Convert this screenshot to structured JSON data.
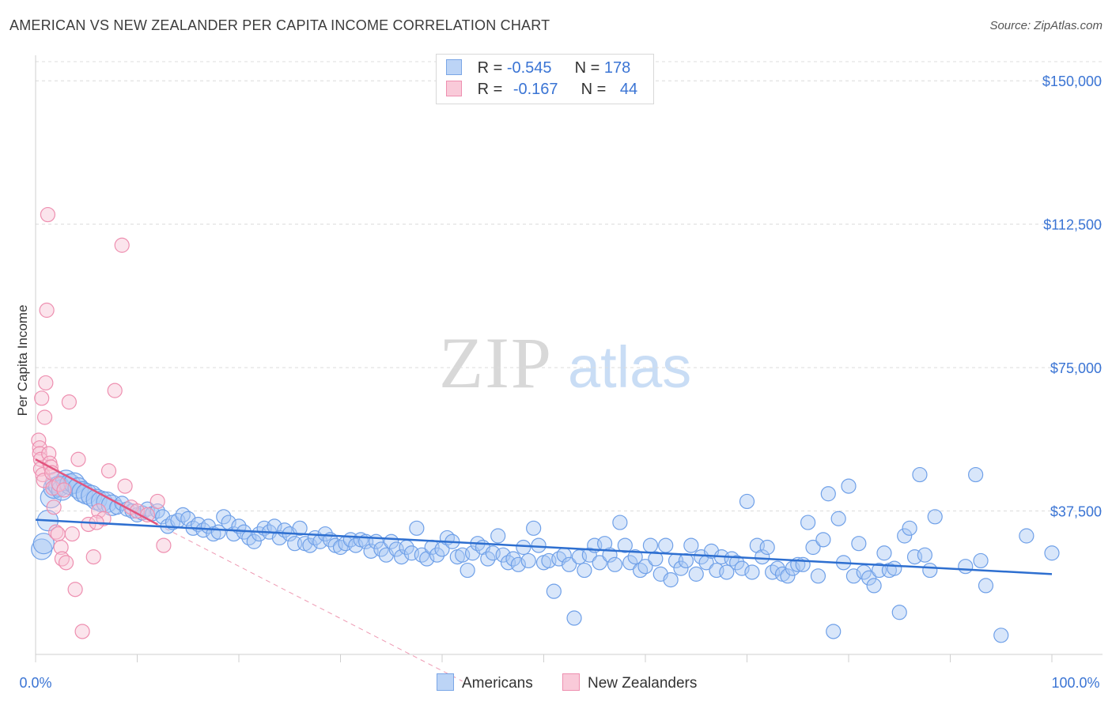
{
  "title": "AMERICAN VS NEW ZEALANDER PER CAPITA INCOME CORRELATION CHART",
  "source": "Source: ZipAtlas.com",
  "watermark": {
    "zip": "ZIP",
    "atlas": "atlas"
  },
  "legend": {
    "americans": {
      "r_label": "R = ",
      "r_value": "-0.545",
      "n_label": "N = ",
      "n_value": "178"
    },
    "new_zealanders": {
      "r_label": "R = ",
      "r_value": "-0.167",
      "n_label": "N = ",
      "n_value": "44"
    }
  },
  "bottom_legend": {
    "americans": "Americans",
    "new_zealanders": "New Zealanders"
  },
  "colors": {
    "blue": "#6fa0e8",
    "blue_fill": "#a9c8f3",
    "blue_line": "#2e6fd0",
    "pink": "#ee8fb0",
    "pink_fill": "#f7c4d5",
    "pink_line": "#e2557f",
    "tick_label": "#3a74d4",
    "grid": "#dcdcdc"
  },
  "chart_data": {
    "type": "scatter",
    "title": "AMERICAN VS NEW ZEALANDER PER CAPITA INCOME CORRELATION CHART",
    "xlabel": "",
    "ylabel": "Per Capita Income",
    "xlim": [
      0,
      100
    ],
    "ylim": [
      0,
      155000
    ],
    "x_tick_labels": [
      "0.0%",
      "100.0%"
    ],
    "y_ticks": [
      37500,
      75000,
      112500,
      150000
    ],
    "y_tick_labels": [
      "$37,500",
      "$75,000",
      "$112,500",
      "$150,000"
    ],
    "series": [
      {
        "name": "Americans",
        "color": "#6fa0e8",
        "trend": {
          "x": [
            0,
            100
          ],
          "y": [
            35200,
            21000
          ]
        },
        "points": [
          [
            0.6,
            27500
          ],
          [
            0.8,
            29000
          ],
          [
            1.2,
            35000
          ],
          [
            1.5,
            41000
          ],
          [
            1.8,
            43500
          ],
          [
            2.0,
            45000
          ],
          [
            2.3,
            44000
          ],
          [
            2.6,
            43000
          ],
          [
            3.0,
            45500
          ],
          [
            3.4,
            44500
          ],
          [
            3.8,
            44800
          ],
          [
            4.2,
            43500
          ],
          [
            4.6,
            42500
          ],
          [
            5.0,
            42000
          ],
          [
            5.5,
            41500
          ],
          [
            6.0,
            40500
          ],
          [
            6.5,
            40000
          ],
          [
            7.0,
            39800
          ],
          [
            7.5,
            39000
          ],
          [
            8.0,
            38500
          ],
          [
            8.5,
            39500
          ],
          [
            9.0,
            38000
          ],
          [
            9.5,
            37500
          ],
          [
            10.0,
            36500
          ],
          [
            10.5,
            37000
          ],
          [
            11.0,
            38000
          ],
          [
            11.5,
            36800
          ],
          [
            12.0,
            37500
          ],
          [
            12.5,
            36000
          ],
          [
            13.0,
            33500
          ],
          [
            13.5,
            34500
          ],
          [
            14.0,
            35000
          ],
          [
            14.5,
            36500
          ],
          [
            15.0,
            35500
          ],
          [
            15.5,
            33000
          ],
          [
            16.0,
            34000
          ],
          [
            16.5,
            32500
          ],
          [
            17.0,
            33500
          ],
          [
            17.5,
            31500
          ],
          [
            18.0,
            32000
          ],
          [
            18.5,
            36000
          ],
          [
            19.0,
            34500
          ],
          [
            19.5,
            31500
          ],
          [
            20.0,
            33500
          ],
          [
            20.5,
            32000
          ],
          [
            21.0,
            30500
          ],
          [
            21.5,
            29500
          ],
          [
            22.0,
            31500
          ],
          [
            22.5,
            33000
          ],
          [
            23.0,
            32000
          ],
          [
            23.5,
            33500
          ],
          [
            24.0,
            30500
          ],
          [
            24.5,
            32500
          ],
          [
            25.0,
            31500
          ],
          [
            25.5,
            29000
          ],
          [
            26.0,
            33000
          ],
          [
            26.5,
            29000
          ],
          [
            27.0,
            28500
          ],
          [
            27.5,
            30500
          ],
          [
            28.0,
            29500
          ],
          [
            28.5,
            31500
          ],
          [
            29.0,
            30000
          ],
          [
            29.5,
            28500
          ],
          [
            30.0,
            28000
          ],
          [
            30.5,
            29000
          ],
          [
            31.0,
            30000
          ],
          [
            31.5,
            28500
          ],
          [
            32.0,
            30000
          ],
          [
            32.5,
            29500
          ],
          [
            33.0,
            27000
          ],
          [
            33.5,
            29500
          ],
          [
            34.0,
            27500
          ],
          [
            34.5,
            26000
          ],
          [
            35.0,
            29500
          ],
          [
            35.5,
            27500
          ],
          [
            36.0,
            25500
          ],
          [
            36.5,
            28000
          ],
          [
            37.0,
            26500
          ],
          [
            37.5,
            33000
          ],
          [
            38.0,
            26000
          ],
          [
            38.5,
            25000
          ],
          [
            39.0,
            28000
          ],
          [
            39.5,
            26000
          ],
          [
            40.0,
            27500
          ],
          [
            40.5,
            30500
          ],
          [
            41.0,
            29500
          ],
          [
            41.5,
            25500
          ],
          [
            42.0,
            26000
          ],
          [
            42.5,
            22000
          ],
          [
            43.0,
            26500
          ],
          [
            43.5,
            29000
          ],
          [
            44.0,
            28000
          ],
          [
            44.5,
            25000
          ],
          [
            45.0,
            26500
          ],
          [
            45.5,
            31000
          ],
          [
            46.0,
            26000
          ],
          [
            46.5,
            24000
          ],
          [
            47.0,
            25000
          ],
          [
            47.5,
            23500
          ],
          [
            48.0,
            28000
          ],
          [
            48.5,
            24500
          ],
          [
            49.0,
            33000
          ],
          [
            49.5,
            28500
          ],
          [
            50.0,
            24000
          ],
          [
            50.5,
            24500
          ],
          [
            51.0,
            16500
          ],
          [
            51.5,
            25000
          ],
          [
            52.0,
            26000
          ],
          [
            52.5,
            23500
          ],
          [
            53.0,
            9500
          ],
          [
            53.5,
            25500
          ],
          [
            54.0,
            22000
          ],
          [
            54.5,
            26000
          ],
          [
            55.0,
            28500
          ],
          [
            55.5,
            24000
          ],
          [
            56.0,
            29000
          ],
          [
            56.5,
            26000
          ],
          [
            57.0,
            23500
          ],
          [
            57.5,
            34500
          ],
          [
            58.0,
            28500
          ],
          [
            58.5,
            24000
          ],
          [
            59.0,
            25500
          ],
          [
            59.5,
            22000
          ],
          [
            60.0,
            23000
          ],
          [
            60.5,
            28500
          ],
          [
            61.0,
            25000
          ],
          [
            61.5,
            21000
          ],
          [
            62.0,
            28500
          ],
          [
            62.5,
            19500
          ],
          [
            63.0,
            24500
          ],
          [
            63.5,
            22500
          ],
          [
            64.0,
            24500
          ],
          [
            64.5,
            28500
          ],
          [
            65.0,
            21000
          ],
          [
            65.5,
            25500
          ],
          [
            66.0,
            24000
          ],
          [
            66.5,
            27000
          ],
          [
            67.0,
            22000
          ],
          [
            67.5,
            25500
          ],
          [
            68.0,
            21500
          ],
          [
            68.5,
            25000
          ],
          [
            69.0,
            24000
          ],
          [
            69.5,
            22500
          ],
          [
            70.0,
            40000
          ],
          [
            70.5,
            21500
          ],
          [
            71.0,
            28500
          ],
          [
            71.5,
            25500
          ],
          [
            72.0,
            28000
          ],
          [
            72.5,
            21500
          ],
          [
            73.0,
            22500
          ],
          [
            73.5,
            21000
          ],
          [
            74.0,
            20500
          ],
          [
            74.5,
            22500
          ],
          [
            75.0,
            23500
          ],
          [
            75.5,
            23500
          ],
          [
            76.0,
            34500
          ],
          [
            76.5,
            28000
          ],
          [
            77.0,
            20500
          ],
          [
            77.5,
            30000
          ],
          [
            78.0,
            42000
          ],
          [
            78.5,
            6000
          ],
          [
            79.0,
            35500
          ],
          [
            79.5,
            24000
          ],
          [
            80.0,
            44000
          ],
          [
            80.5,
            20500
          ],
          [
            81.0,
            29000
          ],
          [
            81.5,
            21500
          ],
          [
            82.0,
            20000
          ],
          [
            82.5,
            18000
          ],
          [
            83.0,
            22000
          ],
          [
            83.5,
            26500
          ],
          [
            84.0,
            22000
          ],
          [
            84.5,
            22500
          ],
          [
            85.0,
            11000
          ],
          [
            85.5,
            31000
          ],
          [
            86.0,
            33000
          ],
          [
            86.5,
            25500
          ],
          [
            87.0,
            47000
          ],
          [
            87.5,
            26000
          ],
          [
            88.0,
            22000
          ],
          [
            88.5,
            36000
          ],
          [
            92.5,
            47000
          ],
          [
            93.0,
            24500
          ],
          [
            93.5,
            18000
          ],
          [
            95.0,
            5000
          ],
          [
            97.5,
            31000
          ],
          [
            100.0,
            26500
          ],
          [
            91.5,
            23000
          ]
        ]
      },
      {
        "name": "New Zealanders",
        "color": "#ee8fb0",
        "trend": {
          "x": [
            0,
            12
          ],
          "y": [
            51000,
            34000
          ]
        },
        "trend_extended": {
          "x": [
            12,
            42
          ],
          "y": [
            34000,
            -7000
          ]
        },
        "points": [
          [
            0.3,
            56000
          ],
          [
            0.4,
            54000
          ],
          [
            0.4,
            52500
          ],
          [
            0.5,
            51000
          ],
          [
            0.5,
            48500
          ],
          [
            0.6,
            67000
          ],
          [
            0.7,
            47000
          ],
          [
            0.8,
            45500
          ],
          [
            0.9,
            62000
          ],
          [
            1.0,
            71000
          ],
          [
            1.1,
            90000
          ],
          [
            1.2,
            115000
          ],
          [
            1.3,
            52500
          ],
          [
            1.4,
            50000
          ],
          [
            1.5,
            49000
          ],
          [
            1.6,
            47500
          ],
          [
            1.7,
            43500
          ],
          [
            1.8,
            38500
          ],
          [
            2.0,
            32000
          ],
          [
            2.2,
            31500
          ],
          [
            2.3,
            44500
          ],
          [
            2.5,
            28000
          ],
          [
            2.6,
            25000
          ],
          [
            2.8,
            43000
          ],
          [
            3.0,
            24000
          ],
          [
            3.3,
            66000
          ],
          [
            3.6,
            31500
          ],
          [
            3.9,
            17000
          ],
          [
            4.2,
            51000
          ],
          [
            4.6,
            6000
          ],
          [
            5.2,
            34000
          ],
          [
            5.7,
            25500
          ],
          [
            6.2,
            37500
          ],
          [
            6.7,
            35500
          ],
          [
            7.2,
            48000
          ],
          [
            7.8,
            69000
          ],
          [
            8.5,
            107000
          ],
          [
            8.8,
            44000
          ],
          [
            9.4,
            38500
          ],
          [
            10.0,
            37500
          ],
          [
            11.0,
            36500
          ],
          [
            12.0,
            40000
          ],
          [
            12.6,
            28500
          ],
          [
            6.0,
            34500
          ]
        ]
      }
    ]
  }
}
